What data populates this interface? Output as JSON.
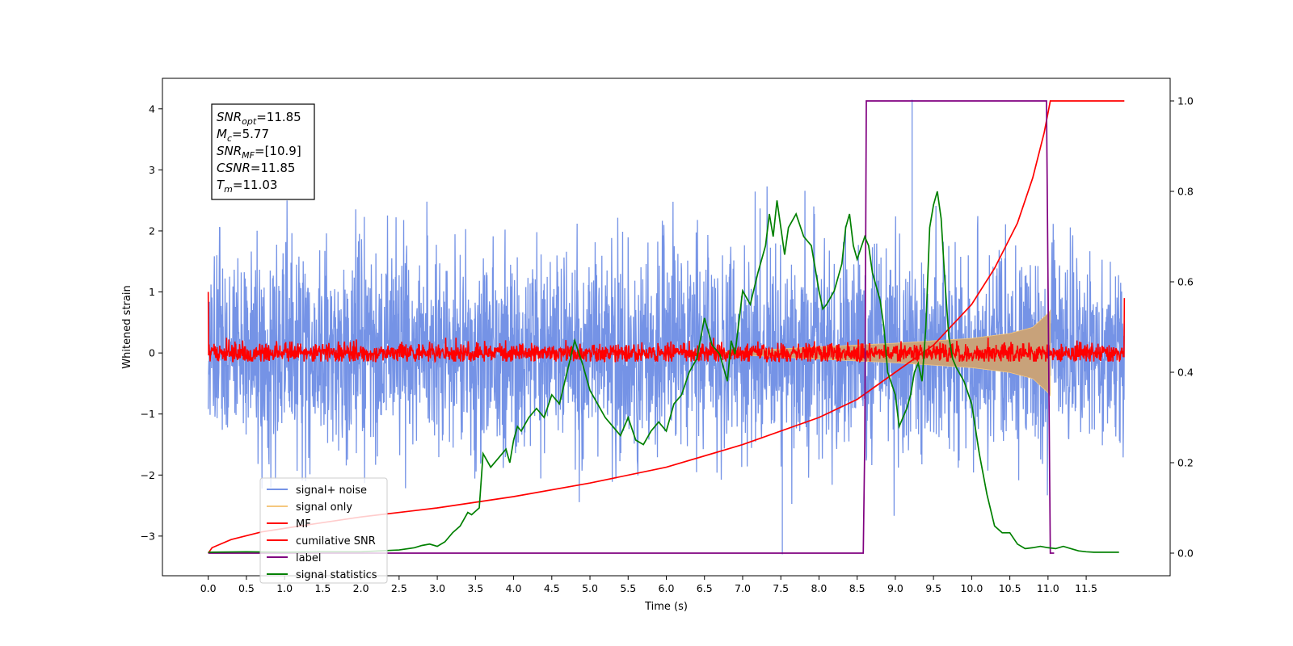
{
  "chart_data": {
    "type": "line",
    "xlabel": "Time (s)",
    "ylabel": "Whitened strain",
    "xlim": [
      -0.6,
      12.6
    ],
    "ylim_left": [
      -3.65,
      4.5
    ],
    "ylim_right": [
      -0.05,
      1.05
    ],
    "x_ticks": [
      "0.0",
      "0.5",
      "1.0",
      "1.5",
      "2.0",
      "2.5",
      "3.0",
      "3.5",
      "4.0",
      "4.5",
      "5.0",
      "5.5",
      "6.0",
      "6.5",
      "7.0",
      "7.5",
      "8.0",
      "8.5",
      "9.0",
      "9.5",
      "10.0",
      "10.5",
      "11.0",
      "11.5"
    ],
    "y_ticks_left": [
      "−3",
      "−2",
      "−1",
      "0",
      "1",
      "2",
      "3",
      "4"
    ],
    "y_ticks_right": [
      "0.0",
      "0.2",
      "0.4",
      "0.6",
      "0.8",
      "1.0"
    ],
    "grid": false,
    "legend_position": "lower-left",
    "annotation": {
      "lines": [
        {
          "sym": "SNR",
          "sub": "opt",
          "val": "=11.85"
        },
        {
          "sym": "M",
          "sub": "c",
          "val": "=5.77"
        },
        {
          "sym": "SNR",
          "sub": "MF",
          "val": "=[10.9]"
        },
        {
          "sym": "CSNR",
          "sub": "",
          "val": "=11.85"
        },
        {
          "sym": "T",
          "sub": "m",
          "val": "=11.03"
        }
      ]
    },
    "series": [
      {
        "name": "signal+ noise",
        "axis": "left",
        "color": "#7593e6",
        "kind": "noise",
        "x_range": [
          0.0,
          12.0
        ],
        "amplitude_std": 0.85,
        "rare_spikes": [
          [
            7.52,
            -3.3
          ],
          [
            9.22,
            4.15
          ]
        ]
      },
      {
        "name": "signal only",
        "axis": "left",
        "color": "#f5c77e",
        "fill_color": "#c8a27a",
        "kind": "chirp_envelope",
        "x_range": [
          6.5,
          11.03
        ],
        "envelope": [
          [
            6.5,
            0.0
          ],
          [
            8.0,
            0.1
          ],
          [
            9.0,
            0.16
          ],
          [
            10.0,
            0.24
          ],
          [
            10.5,
            0.32
          ],
          [
            10.8,
            0.42
          ],
          [
            11.0,
            0.65
          ],
          [
            11.03,
            0.7
          ]
        ]
      },
      {
        "name": "MF",
        "axis": "left",
        "color": "#ff0000",
        "kind": "noise",
        "x_range": [
          0.0,
          12.0
        ],
        "amplitude_std": 0.08,
        "edge_values": [
          [
            0.0,
            1.0
          ],
          [
            12.0,
            0.9
          ]
        ]
      },
      {
        "name": "cumilative SNR",
        "axis": "right",
        "color": "#ff0000",
        "kind": "line",
        "points": [
          [
            0.0,
            0.0
          ],
          [
            0.05,
            0.012
          ],
          [
            0.3,
            0.03
          ],
          [
            0.7,
            0.047
          ],
          [
            1.2,
            0.06
          ],
          [
            2.0,
            0.08
          ],
          [
            3.0,
            0.1
          ],
          [
            4.0,
            0.125
          ],
          [
            5.0,
            0.155
          ],
          [
            6.0,
            0.19
          ],
          [
            7.0,
            0.24
          ],
          [
            8.0,
            0.3
          ],
          [
            8.5,
            0.34
          ],
          [
            9.0,
            0.4
          ],
          [
            9.5,
            0.46
          ],
          [
            10.0,
            0.55
          ],
          [
            10.3,
            0.63
          ],
          [
            10.6,
            0.73
          ],
          [
            10.8,
            0.83
          ],
          [
            10.95,
            0.93
          ],
          [
            11.03,
            1.0
          ],
          [
            12.0,
            1.0
          ]
        ]
      },
      {
        "name": "label",
        "axis": "right",
        "color": "#800080",
        "kind": "line",
        "points": [
          [
            0.0,
            0.0
          ],
          [
            8.58,
            0.0
          ],
          [
            8.6,
            0.25
          ],
          [
            8.62,
            1.0
          ],
          [
            10.98,
            1.0
          ],
          [
            11.03,
            0.0
          ],
          [
            11.08,
            0.0
          ]
        ]
      },
      {
        "name": "signal statistics",
        "axis": "right",
        "color": "#008000",
        "kind": "line",
        "points": [
          [
            0.0,
            0.002
          ],
          [
            0.5,
            0.003
          ],
          [
            1.0,
            0.002
          ],
          [
            1.5,
            0.003
          ],
          [
            2.0,
            0.003
          ],
          [
            2.5,
            0.007
          ],
          [
            2.7,
            0.012
          ],
          [
            2.8,
            0.017
          ],
          [
            2.9,
            0.02
          ],
          [
            3.0,
            0.015
          ],
          [
            3.1,
            0.025
          ],
          [
            3.2,
            0.045
          ],
          [
            3.3,
            0.06
          ],
          [
            3.4,
            0.09
          ],
          [
            3.45,
            0.085
          ],
          [
            3.55,
            0.1
          ],
          [
            3.6,
            0.22
          ],
          [
            3.7,
            0.19
          ],
          [
            3.8,
            0.21
          ],
          [
            3.9,
            0.23
          ],
          [
            3.95,
            0.2
          ],
          [
            4.0,
            0.25
          ],
          [
            4.05,
            0.28
          ],
          [
            4.1,
            0.27
          ],
          [
            4.2,
            0.3
          ],
          [
            4.3,
            0.32
          ],
          [
            4.4,
            0.3
          ],
          [
            4.5,
            0.35
          ],
          [
            4.6,
            0.33
          ],
          [
            4.7,
            0.4
          ],
          [
            4.8,
            0.47
          ],
          [
            4.9,
            0.42
          ],
          [
            5.0,
            0.36
          ],
          [
            5.1,
            0.33
          ],
          [
            5.2,
            0.3
          ],
          [
            5.3,
            0.28
          ],
          [
            5.4,
            0.26
          ],
          [
            5.5,
            0.3
          ],
          [
            5.6,
            0.25
          ],
          [
            5.7,
            0.24
          ],
          [
            5.8,
            0.27
          ],
          [
            5.9,
            0.29
          ],
          [
            6.0,
            0.27
          ],
          [
            6.1,
            0.33
          ],
          [
            6.2,
            0.35
          ],
          [
            6.3,
            0.4
          ],
          [
            6.4,
            0.43
          ],
          [
            6.5,
            0.52
          ],
          [
            6.6,
            0.46
          ],
          [
            6.7,
            0.44
          ],
          [
            6.8,
            0.38
          ],
          [
            6.85,
            0.47
          ],
          [
            6.9,
            0.44
          ],
          [
            7.0,
            0.58
          ],
          [
            7.1,
            0.55
          ],
          [
            7.2,
            0.62
          ],
          [
            7.3,
            0.68
          ],
          [
            7.35,
            0.75
          ],
          [
            7.4,
            0.7
          ],
          [
            7.45,
            0.78
          ],
          [
            7.5,
            0.72
          ],
          [
            7.55,
            0.66
          ],
          [
            7.6,
            0.72
          ],
          [
            7.7,
            0.75
          ],
          [
            7.8,
            0.7
          ],
          [
            7.9,
            0.68
          ],
          [
            8.0,
            0.58
          ],
          [
            8.05,
            0.54
          ],
          [
            8.1,
            0.55
          ],
          [
            8.2,
            0.58
          ],
          [
            8.3,
            0.64
          ],
          [
            8.35,
            0.72
          ],
          [
            8.4,
            0.75
          ],
          [
            8.45,
            0.68
          ],
          [
            8.5,
            0.65
          ],
          [
            8.6,
            0.7
          ],
          [
            8.65,
            0.68
          ],
          [
            8.7,
            0.62
          ],
          [
            8.8,
            0.56
          ],
          [
            8.85,
            0.5
          ],
          [
            8.9,
            0.4
          ],
          [
            9.0,
            0.35
          ],
          [
            9.05,
            0.28
          ],
          [
            9.1,
            0.3
          ],
          [
            9.15,
            0.32
          ],
          [
            9.2,
            0.35
          ],
          [
            9.25,
            0.4
          ],
          [
            9.3,
            0.42
          ],
          [
            9.35,
            0.38
          ],
          [
            9.4,
            0.5
          ],
          [
            9.45,
            0.72
          ],
          [
            9.5,
            0.77
          ],
          [
            9.55,
            0.8
          ],
          [
            9.6,
            0.74
          ],
          [
            9.65,
            0.6
          ],
          [
            9.7,
            0.48
          ],
          [
            9.75,
            0.43
          ],
          [
            9.8,
            0.41
          ],
          [
            9.9,
            0.38
          ],
          [
            10.0,
            0.33
          ],
          [
            10.1,
            0.22
          ],
          [
            10.2,
            0.13
          ],
          [
            10.3,
            0.06
          ],
          [
            10.4,
            0.045
          ],
          [
            10.5,
            0.045
          ],
          [
            10.6,
            0.02
          ],
          [
            10.7,
            0.01
          ],
          [
            10.8,
            0.012
          ],
          [
            10.9,
            0.015
          ],
          [
            11.0,
            0.012
          ],
          [
            11.1,
            0.01
          ],
          [
            11.2,
            0.015
          ],
          [
            11.3,
            0.01
          ],
          [
            11.4,
            0.005
          ],
          [
            11.5,
            0.003
          ],
          [
            11.6,
            0.002
          ],
          [
            11.7,
            0.002
          ],
          [
            11.8,
            0.002
          ],
          [
            11.9,
            0.002
          ],
          [
            11.93,
            0.002
          ]
        ]
      }
    ]
  }
}
